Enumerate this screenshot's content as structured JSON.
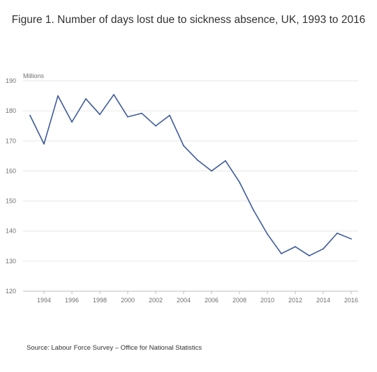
{
  "title": "Figure 1. Number of days lost due to sickness absence, UK, 1993 to 2016",
  "source": "Source: Labour Force Survey – Office for National Statistics",
  "chart_data": {
    "type": "line",
    "title": "Figure 1. Number of days lost due to sickness absence, UK, 1993 to 2016",
    "xlabel": "",
    "ylabel": "Millions",
    "xlim": [
      1992.5,
      2016.5
    ],
    "ylim": [
      120,
      190
    ],
    "y_ticks": [
      120,
      130,
      140,
      150,
      160,
      170,
      180,
      190
    ],
    "x_ticks": [
      1994,
      1996,
      1998,
      2000,
      2002,
      2004,
      2006,
      2008,
      2010,
      2012,
      2014,
      2016
    ],
    "grid": "horizontal",
    "legend": "none",
    "line_color": "#3d5a99",
    "series": [
      {
        "x": [
          1993,
          1994,
          1995,
          1996,
          1997,
          1998,
          1999,
          2000,
          2001,
          2002,
          2003,
          2004,
          2005,
          2006,
          2007,
          2008,
          2009,
          2010,
          2011,
          2012,
          2013,
          2014,
          2015,
          2016
        ],
        "values": [
          178.5,
          169.0,
          185.0,
          176.3,
          184.0,
          178.8,
          185.4,
          178.0,
          179.2,
          175.0,
          178.5,
          168.4,
          163.6,
          160.0,
          163.4,
          156.3,
          147.0,
          139.0,
          132.5,
          134.8,
          131.8,
          134.1,
          139.3,
          137.4
        ]
      }
    ]
  }
}
